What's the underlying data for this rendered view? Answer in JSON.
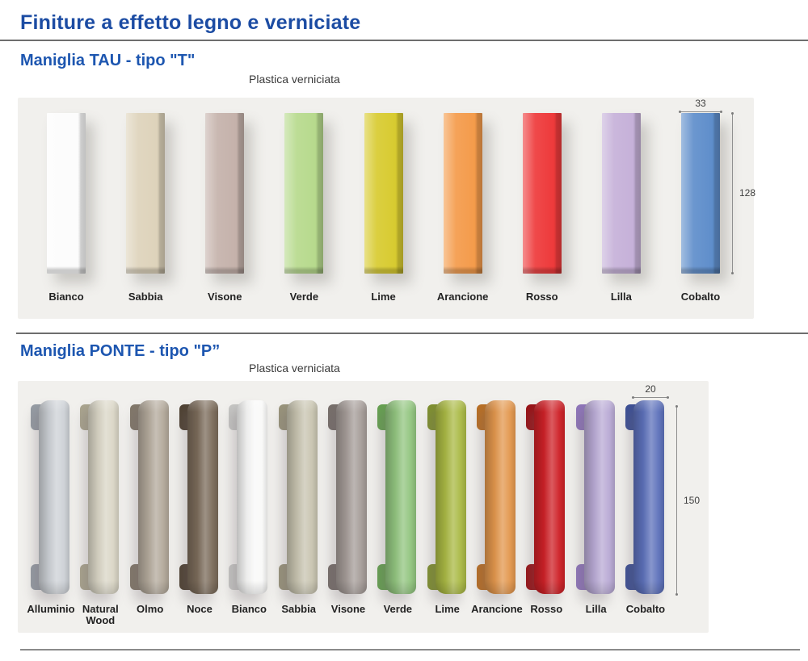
{
  "page": {
    "title": "Finiture a effetto legno e verniciate",
    "colors": {
      "title_blue": "#1c4ca3",
      "heading_blue": "#1d56b0",
      "panel_background": "#f1f0ed"
    }
  },
  "sections": [
    {
      "id": "tau",
      "heading": "Maniglia TAU - tipo \"T\"",
      "material": "Plastica verniciata",
      "handle_type": "bar",
      "dimensions": {
        "width_label": "33",
        "height_label": "128"
      },
      "finishes": [
        {
          "label": "Bianco",
          "color": "#fcfcfc",
          "shade": "#d8d8d8"
        },
        {
          "label": "Sabbia",
          "color": "#ded3bb",
          "shade": "#bfb296"
        },
        {
          "label": "Visone",
          "color": "#c5b2ab",
          "shade": "#a7928a"
        },
        {
          "label": "Verde",
          "color": "#b7da8d",
          "shade": "#96c464"
        },
        {
          "label": "Lime",
          "color": "#d8cb30",
          "shade": "#b5a91a"
        },
        {
          "label": "Arancione",
          "color": "#f49b4b",
          "shade": "#da7e24"
        },
        {
          "label": "Rosso",
          "color": "#ee3a3b",
          "shade": "#ce2023"
        },
        {
          "label": "Lilla",
          "color": "#c6b1d9",
          "shade": "#aa90c4"
        },
        {
          "label": "Cobalto",
          "color": "#5f8ecb",
          "shade": "#4674ae"
        }
      ]
    },
    {
      "id": "ponte",
      "heading": "Maniglia PONTE - tipo \"P”",
      "material": "Plastica verniciata",
      "handle_type": "bridge",
      "dimensions": {
        "width_label": "20",
        "height_label": "150"
      },
      "finishes": [
        {
          "label": "Alluminio",
          "color": "#cdd1d6",
          "shade": "#969ca4"
        },
        {
          "label": "Natural Wood",
          "color": "#dad6c6",
          "shade": "#aaa58f"
        },
        {
          "label": "Olmo",
          "color": "#b3a99b",
          "shade": "#82786a"
        },
        {
          "label": "Noce",
          "color": "#7b6b5a",
          "shade": "#4f4233"
        },
        {
          "label": "Bianco",
          "color": "#f9f9f8",
          "shade": "#c6c6c4"
        },
        {
          "label": "Sabbia",
          "color": "#c8c4b0",
          "shade": "#99947c"
        },
        {
          "label": "Visone",
          "color": "#a59c98",
          "shade": "#776f6b"
        },
        {
          "label": "Verde",
          "color": "#92c57f",
          "shade": "#66a151"
        },
        {
          "label": "Lime",
          "color": "#aab944",
          "shade": "#7f9030"
        },
        {
          "label": "Arancione",
          "color": "#e3974d",
          "shade": "#b96f24"
        },
        {
          "label": "Rosso",
          "color": "#ce2127",
          "shade": "#991216"
        },
        {
          "label": "Lilla",
          "color": "#b9aad5",
          "shade": "#8f76ba"
        },
        {
          "label": "Cobalto",
          "color": "#5d71bb",
          "shade": "#3d5095"
        }
      ]
    }
  ]
}
